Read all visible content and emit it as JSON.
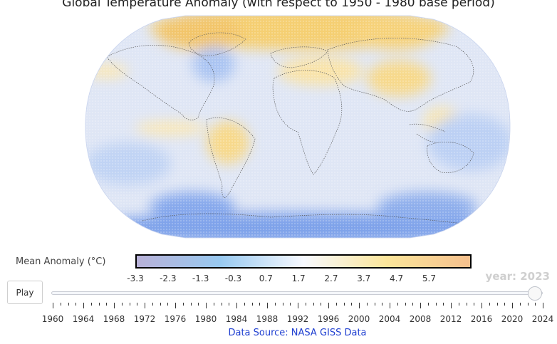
{
  "title": "Global Temperature Anomaly (with respect to 1950 - 1980 base period)",
  "colorbar": {
    "label": "Mean Anomaly (°C)",
    "tick_labels": [
      "-3.3",
      "-2.3",
      "-1.3",
      "-0.3",
      "0.7",
      "1.7",
      "2.7",
      "3.7",
      "4.7",
      "5.7"
    ],
    "tick_values": [
      -3.3,
      -2.3,
      -1.3,
      -0.3,
      0.7,
      1.7,
      2.7,
      3.7,
      4.7,
      5.7
    ],
    "range": [
      -3.3,
      7.0
    ],
    "colors": [
      "#b8b1d8",
      "#98c9f0",
      "#f7f9ff",
      "#fbe59a",
      "#f5c08d"
    ]
  },
  "map": {
    "projection": "robinson",
    "base_color": "#dfe6f5",
    "cool_color": "#7aa0ea",
    "warm_color": "#f7cf6e"
  },
  "player": {
    "play_label": "Play",
    "current_label": "year: 2023",
    "current_year": 2023,
    "slider_min": 1958,
    "slider_max": 2024,
    "tick_labels": [
      "1960",
      "1964",
      "1968",
      "1972",
      "1976",
      "1980",
      "1984",
      "1988",
      "1992",
      "1996",
      "2000",
      "2004",
      "2008",
      "2012",
      "2016",
      "2020",
      "2024"
    ]
  },
  "source": "Data Source: NASA GISS Data"
}
